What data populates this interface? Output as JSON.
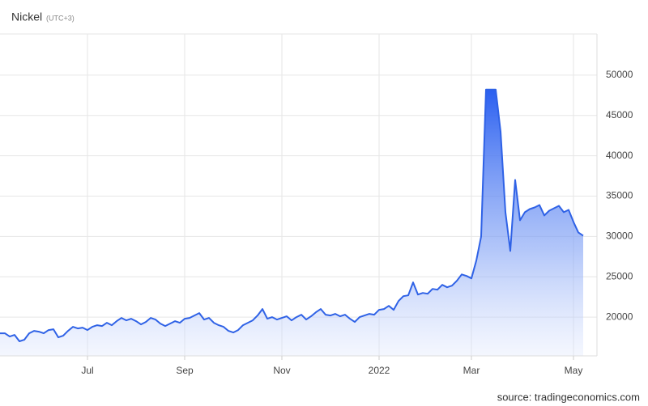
{
  "chart_data": {
    "type": "area",
    "title": "Nickel",
    "subtitle": "(UTC+3)",
    "source": "source: tradingeconomics.com",
    "color": "#2f62e6",
    "categories": [
      null,
      null,
      null,
      null,
      null,
      null,
      null,
      null,
      null,
      null,
      null,
      null,
      null,
      null,
      null,
      null,
      null,
      null,
      "Jul",
      null,
      null,
      null,
      null,
      null,
      null,
      null,
      null,
      null,
      null,
      null,
      null,
      null,
      null,
      null,
      null,
      null,
      null,
      null,
      "Sep",
      null,
      null,
      null,
      null,
      null,
      null,
      null,
      null,
      null,
      null,
      null,
      null,
      null,
      null,
      null,
      null,
      null,
      null,
      null,
      "Nov",
      null,
      null,
      null,
      null,
      null,
      null,
      null,
      null,
      null,
      null,
      null,
      null,
      null,
      null,
      null,
      null,
      null,
      null,
      null,
      "2022",
      null,
      null,
      null,
      null,
      null,
      null,
      null,
      null,
      null,
      null,
      null,
      null,
      null,
      null,
      null,
      null,
      null,
      null,
      "Mar",
      null,
      null,
      null,
      null,
      null,
      null,
      null,
      null,
      null,
      null,
      null,
      null,
      null,
      null,
      null,
      null,
      null,
      null,
      null,
      null,
      "May",
      null,
      null
    ],
    "values": [
      18000,
      18000,
      17600,
      17800,
      17000,
      17200,
      18000,
      18300,
      18200,
      18000,
      18400,
      18500,
      17500,
      17700,
      18300,
      18800,
      18600,
      18700,
      18400,
      18800,
      19000,
      18900,
      19300,
      19000,
      19500,
      19900,
      19600,
      19800,
      19500,
      19100,
      19400,
      19900,
      19700,
      19200,
      18900,
      19200,
      19500,
      19300,
      19800,
      19900,
      20200,
      20500,
      19700,
      19900,
      19300,
      19000,
      18800,
      18300,
      18100,
      18400,
      19000,
      19300,
      19600,
      20200,
      21000,
      19800,
      20000,
      19700,
      19900,
      20100,
      19600,
      20000,
      20300,
      19700,
      20100,
      20600,
      21000,
      20300,
      20200,
      20400,
      20100,
      20300,
      19800,
      19400,
      20000,
      20200,
      20400,
      20300,
      20900,
      21000,
      21400,
      20900,
      22000,
      22600,
      22700,
      24300,
      22800,
      23000,
      22900,
      23500,
      23400,
      24000,
      23700,
      23900,
      24500,
      25300,
      25100,
      24800,
      27000,
      30000,
      48200,
      48200,
      48200,
      43000,
      33000,
      28200,
      37000,
      32000,
      33000,
      33400,
      33600,
      33900,
      32600,
      33200,
      33500,
      33800,
      33000,
      33300,
      31800,
      30500,
      30100
    ],
    "ylim": [
      15200,
      55100
    ],
    "yticks": [
      20000,
      25000,
      30000,
      35000,
      40000,
      45000,
      50000
    ],
    "grid": true
  }
}
